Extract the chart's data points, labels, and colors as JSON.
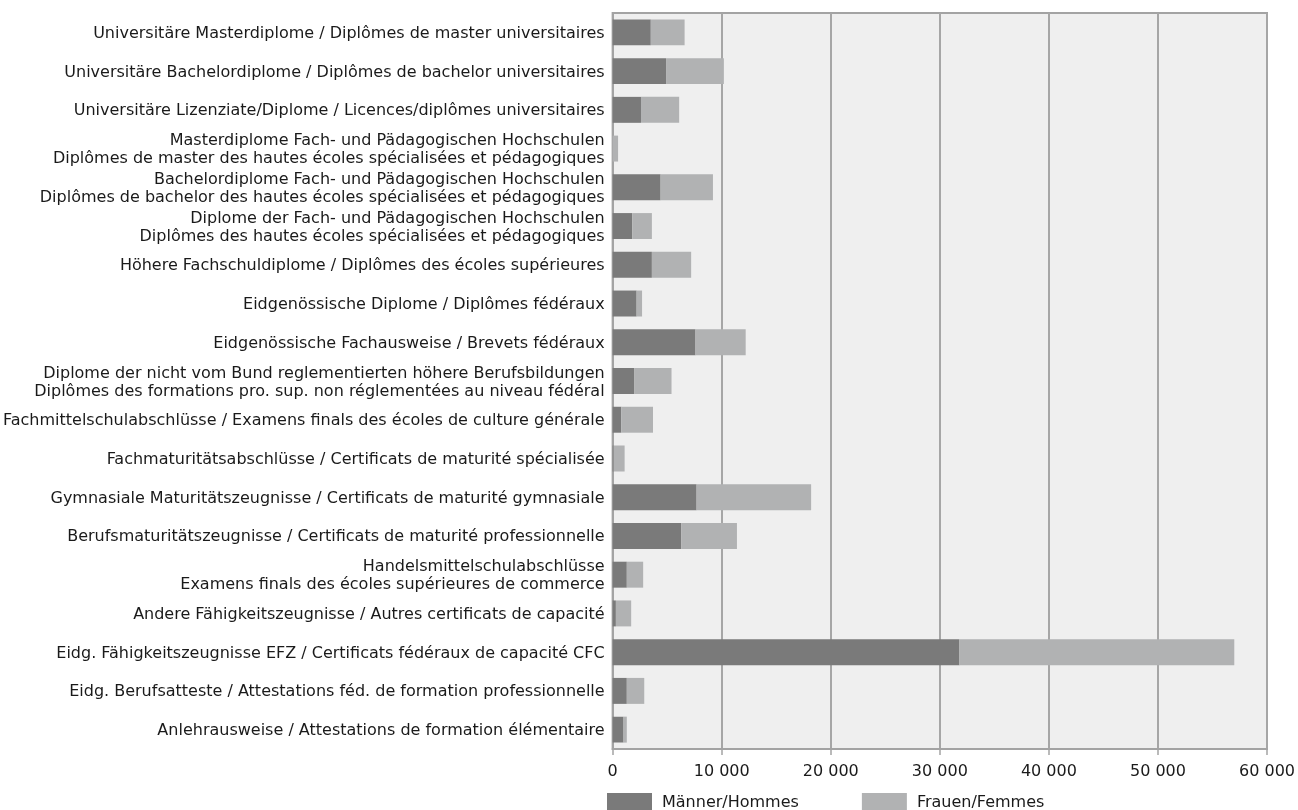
{
  "chart_data": {
    "type": "bar",
    "orientation": "horizontal",
    "stacked": true,
    "categories": [
      "Universitäre Masterdiplome / Diplômes de master universitaires",
      "Universitäre Bachelordiplome / Diplômes de bachelor universitaires",
      "Universitäre Lizenziate/Diplome / Licences/diplômes universitaires",
      "Masterdiplome Fach- und Pädagogischen Hochschulen\nDiplômes de master des hautes écoles spécialisées et pédagogiques",
      "Bachelordiplome Fach- und Pädagogischen Hochschulen\nDiplômes de bachelor des hautes écoles spécialisées et pédagogiques",
      "Diplome der Fach- und Pädagogischen Hochschulen\nDiplômes des hautes écoles spécialisées et pédagogiques",
      "Höhere Fachschuldiplome / Diplômes des écoles supérieures",
      "Eidgenössische Diplome / Diplômes fédéraux",
      "Eidgenössische Fachausweise / Brevets fédéraux",
      "Diplome der nicht vom Bund reglementierten höhere Berufsbildungen\nDiplômes des formations pro. sup. non réglementées au niveau fédéral",
      "Fachmittelschulabschlüsse / Examens finals des écoles de culture générale",
      "Fachmaturitätsabschlüsse / Certificats de maturité spécialisée",
      "Gymnasiale Maturitätszeugnisse / Certificats de maturité gymnasiale",
      "Berufsmaturitätszeugnisse / Certificats de maturité professionnelle",
      "Handelsmittelschulabschlüsse\nExamens finals des écoles supérieures de commerce",
      "Andere Fähigkeitszeugnisse / Autres certificats de capacité",
      "Eidg. Fähigkeitszeugnisse EFZ / Certificats fédéraux de capacité CFC",
      "Eidg. Berufsatteste / Attestations féd. de formation professionnelle",
      "Anlehrausweise / Attestations de formation élémentaire"
    ],
    "series": [
      {
        "name": "Männer/Hommes",
        "color": "#7a7a7a",
        "values": [
          3500,
          4900,
          2600,
          0,
          4400,
          1800,
          3600,
          2200,
          7600,
          2000,
          800,
          100,
          7700,
          6300,
          1300,
          300,
          31800,
          1300,
          1000
        ]
      },
      {
        "name": "Frauen/Femmes",
        "color": "#b1b2b3",
        "values": [
          3100,
          5300,
          3500,
          500,
          4800,
          1800,
          3600,
          500,
          4600,
          3400,
          2900,
          1000,
          10500,
          5100,
          1500,
          1400,
          25200,
          1600,
          300
        ]
      }
    ],
    "xlim": [
      0,
      60000
    ],
    "xticks": [
      0,
      {
        "value": 10000,
        "label": "10 000"
      },
      {
        "value": 20000,
        "label": "20 000"
      },
      {
        "value": 30000,
        "label": "30 000"
      },
      {
        "value": 40000,
        "label": "40 000"
      },
      {
        "value": 50000,
        "label": "50 000"
      },
      {
        "value": 60000,
        "label": "60 000"
      }
    ],
    "grid": "x",
    "legend": "bottom"
  }
}
